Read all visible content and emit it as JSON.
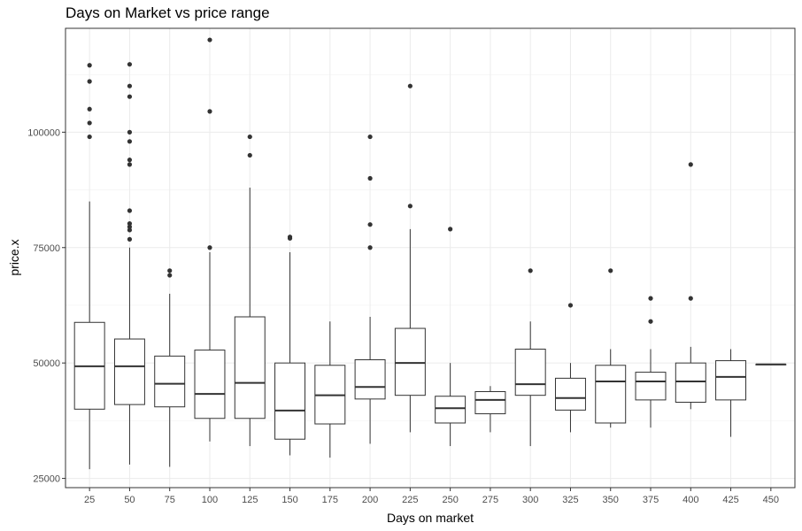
{
  "chart_data": {
    "type": "box",
    "title": "Days on Market vs price range",
    "xlabel": "Days on market",
    "ylabel": "price.x",
    "ylim": [
      23000,
      122500
    ],
    "y_ticks": [
      25000,
      50000,
      75000,
      100000
    ],
    "y_tick_labels": [
      "25000",
      "50000",
      "75000",
      "100000"
    ],
    "grid": true,
    "categories": [
      "25",
      "50",
      "75",
      "100",
      "125",
      "150",
      "175",
      "200",
      "225",
      "250",
      "275",
      "300",
      "325",
      "350",
      "375",
      "400",
      "425",
      "450"
    ],
    "boxes": [
      {
        "x": "25",
        "min": 27000,
        "q1": 40000,
        "median": 49300,
        "q3": 58800,
        "max": 85000,
        "outliers": [
          99000,
          102000,
          105000,
          111000,
          114500
        ]
      },
      {
        "x": "50",
        "min": 28000,
        "q1": 41000,
        "median": 49300,
        "q3": 55200,
        "max": 75000,
        "outliers": [
          76800,
          78800,
          79500,
          80200,
          83000,
          93000,
          94000,
          98000,
          100000,
          107700,
          110000,
          114700
        ]
      },
      {
        "x": "75",
        "min": 27500,
        "q1": 40500,
        "median": 45500,
        "q3": 51500,
        "max": 65000,
        "outliers": [
          69000,
          70000
        ]
      },
      {
        "x": "100",
        "min": 33000,
        "q1": 38000,
        "median": 43300,
        "q3": 52800,
        "max": 74000,
        "outliers": [
          75000,
          104500,
          120000
        ]
      },
      {
        "x": "125",
        "min": 32000,
        "q1": 38000,
        "median": 45700,
        "q3": 60000,
        "max": 88000,
        "outliers": [
          95000,
          99000
        ]
      },
      {
        "x": "150",
        "min": 30000,
        "q1": 33500,
        "median": 39700,
        "q3": 50000,
        "max": 74000,
        "outliers": [
          77000,
          77300
        ]
      },
      {
        "x": "175",
        "min": 29500,
        "q1": 36800,
        "median": 43000,
        "q3": 49500,
        "max": 59000,
        "outliers": []
      },
      {
        "x": "200",
        "min": 32500,
        "q1": 42200,
        "median": 44800,
        "q3": 50700,
        "max": 60000,
        "outliers": [
          75000,
          80000,
          90000,
          99000
        ]
      },
      {
        "x": "225",
        "min": 35000,
        "q1": 43000,
        "median": 50000,
        "q3": 57500,
        "max": 79000,
        "outliers": [
          84000,
          110000
        ]
      },
      {
        "x": "250",
        "min": 32000,
        "q1": 37000,
        "median": 40200,
        "q3": 42800,
        "max": 50000,
        "outliers": [
          79000
        ]
      },
      {
        "x": "275",
        "min": 35000,
        "q1": 39000,
        "median": 42000,
        "q3": 43800,
        "max": 45000,
        "outliers": []
      },
      {
        "x": "300",
        "min": 32000,
        "q1": 43000,
        "median": 45400,
        "q3": 53000,
        "max": 59000,
        "outliers": [
          70000
        ]
      },
      {
        "x": "325",
        "min": 35000,
        "q1": 39800,
        "median": 42400,
        "q3": 46700,
        "max": 50000,
        "outliers": [
          62500
        ]
      },
      {
        "x": "350",
        "min": 36000,
        "q1": 37000,
        "median": 46000,
        "q3": 49500,
        "max": 53000,
        "outliers": [
          70000
        ]
      },
      {
        "x": "375",
        "min": 36000,
        "q1": 42000,
        "median": 46000,
        "q3": 48000,
        "max": 53000,
        "outliers": [
          59000,
          64000
        ]
      },
      {
        "x": "400",
        "min": 40000,
        "q1": 41500,
        "median": 46000,
        "q3": 50000,
        "max": 53500,
        "outliers": [
          64000,
          93000
        ]
      },
      {
        "x": "425",
        "min": 34000,
        "q1": 42000,
        "median": 47000,
        "q3": 50500,
        "max": 53000,
        "outliers": []
      },
      {
        "x": "450",
        "min": 49700,
        "q1": 49700,
        "median": 49700,
        "q3": 49700,
        "max": 49700,
        "outliers": []
      }
    ]
  }
}
